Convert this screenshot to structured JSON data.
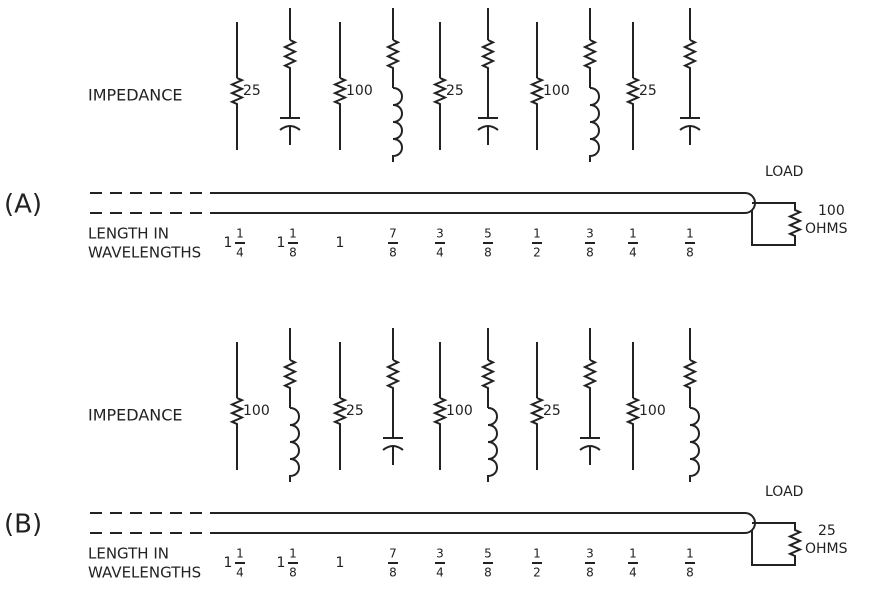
{
  "panels": [
    {
      "label": "(A)",
      "impedance_label": "IMPEDANCE",
      "elements": [
        {
          "kind": "resistor",
          "value": "25"
        },
        {
          "kind": "capacitor"
        },
        {
          "kind": "resistor",
          "value": "100"
        },
        {
          "kind": "inductor"
        },
        {
          "kind": "resistor",
          "value": "25"
        },
        {
          "kind": "capacitor"
        },
        {
          "kind": "resistor",
          "value": "100"
        },
        {
          "kind": "inductor"
        },
        {
          "kind": "resistor",
          "value": "25"
        },
        {
          "kind": "capacitor"
        }
      ],
      "length_label": [
        "LENGTH IN",
        "WAVELENGTHS"
      ],
      "lengths": [
        {
          "whole": "1",
          "num": "1",
          "den": "4"
        },
        {
          "whole": "1",
          "num": "1",
          "den": "8"
        },
        {
          "whole": "1"
        },
        {
          "num": "7",
          "den": "8"
        },
        {
          "num": "3",
          "den": "4"
        },
        {
          "num": "5",
          "den": "8"
        },
        {
          "num": "1",
          "den": "2"
        },
        {
          "num": "3",
          "den": "8"
        },
        {
          "num": "1",
          "den": "4"
        },
        {
          "num": "1",
          "den": "8"
        }
      ],
      "load": {
        "label": "LOAD",
        "value": "100",
        "unit": "OHMS"
      }
    },
    {
      "label": "(B)",
      "impedance_label": "IMPEDANCE",
      "elements": [
        {
          "kind": "resistor",
          "value": "100"
        },
        {
          "kind": "inductor"
        },
        {
          "kind": "resistor",
          "value": "25"
        },
        {
          "kind": "capacitor"
        },
        {
          "kind": "resistor",
          "value": "100"
        },
        {
          "kind": "inductor"
        },
        {
          "kind": "resistor",
          "value": "25"
        },
        {
          "kind": "capacitor"
        },
        {
          "kind": "resistor",
          "value": "100"
        },
        {
          "kind": "inductor"
        }
      ],
      "length_label": [
        "LENGTH IN",
        "WAVELENGTHS"
      ],
      "lengths": [
        {
          "whole": "1",
          "num": "1",
          "den": "4"
        },
        {
          "whole": "1",
          "num": "1",
          "den": "8"
        },
        {
          "whole": "1"
        },
        {
          "num": "7",
          "den": "8"
        },
        {
          "num": "3",
          "den": "4"
        },
        {
          "num": "5",
          "den": "8"
        },
        {
          "num": "1",
          "den": "2"
        },
        {
          "num": "3",
          "den": "8"
        },
        {
          "num": "1",
          "den": "4"
        },
        {
          "num": "1",
          "den": "8"
        }
      ],
      "load": {
        "label": "LOAD",
        "value": "25",
        "unit": "OHMS"
      }
    }
  ]
}
